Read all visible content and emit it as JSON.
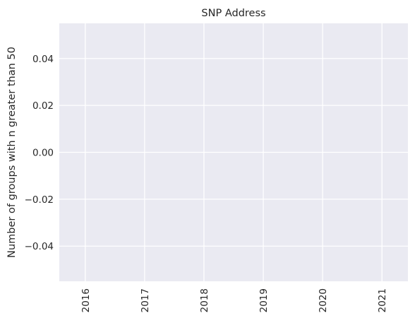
{
  "chart_data": {
    "type": "bar",
    "title": "SNP Address",
    "xlabel": "",
    "ylabel": "Number of groups with n greater than 50",
    "categories": [
      "2016",
      "2017",
      "2018",
      "2019",
      "2020",
      "2021"
    ],
    "values": [
      0,
      0,
      0,
      0,
      0,
      0
    ],
    "ylim": [
      -0.055,
      0.055
    ],
    "yticks": [
      "−0.04",
      "−0.02",
      "0.00",
      "0.02",
      "0.04"
    ],
    "ytick_values": [
      -0.04,
      -0.02,
      0.0,
      0.02,
      0.04
    ],
    "grid": true,
    "colors": {
      "background": "#eaeaf2",
      "grid": "#ffffff",
      "text": "#262626"
    }
  }
}
